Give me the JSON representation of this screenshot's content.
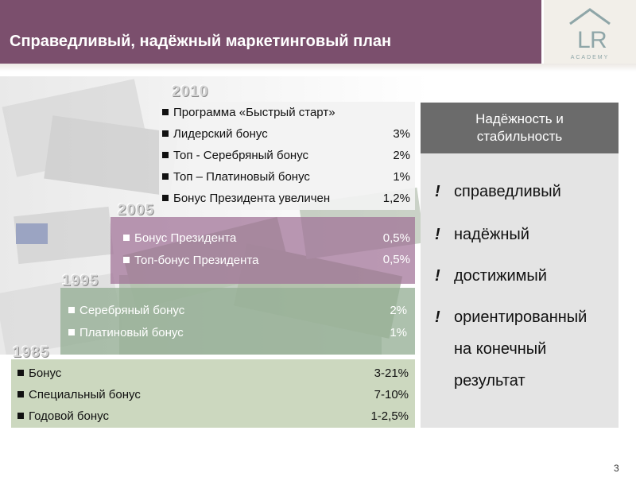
{
  "slide": {
    "title": "Справедливый, надёжный маркетинговый план",
    "page_number": "3",
    "logo_text": "ACADEMY"
  },
  "timeline": {
    "y2010": {
      "year": "2010",
      "items": [
        {
          "label": "Программа «Быстрый старт»",
          "value": ""
        },
        {
          "label": "Лидерский бонус",
          "value": "3%"
        },
        {
          "label": "Топ - Серебряный бонус",
          "value": "2%"
        },
        {
          "label": "Топ – Платиновый бонус",
          "value": "1%"
        },
        {
          "label": "Бонус Президента увеличен",
          "value": "1,2%"
        }
      ]
    },
    "y2005": {
      "year": "2005",
      "items": [
        {
          "label": "Бонус Президента",
          "value": "0,5%"
        },
        {
          "label": "Топ-бонус Президента",
          "value": "0,5%"
        }
      ]
    },
    "y1995": {
      "year": "1995",
      "items": [
        {
          "label": "Серебряный бонус",
          "value": "2%"
        },
        {
          "label": "Платиновый бонус",
          "value": "1%"
        }
      ]
    },
    "y1985": {
      "year": "1985",
      "items": [
        {
          "label": "Бонус",
          "value": "3-21%"
        },
        {
          "label": "Специальный бонус",
          "value": "7-10%"
        },
        {
          "label": "Годовой бонус",
          "value": "1-2,5%"
        }
      ]
    }
  },
  "panel": {
    "heading_line1": "Надёжность и",
    "heading_line2": "стабильность",
    "mark": "!",
    "features": [
      {
        "line1": "справедливый"
      },
      {
        "line1": "надёжный"
      },
      {
        "line1": "достижимый"
      },
      {
        "line1": "ориентированный",
        "line2": "на конечный",
        "line3": "результат"
      }
    ]
  },
  "colors": {
    "header": "#7b4f6d",
    "panel_head": "#6b6b6b",
    "panel_body": "#e4e4e4",
    "band_2005": "#a07096",
    "band_1995": "#96af96",
    "band_1985": "#c6d4b8"
  },
  "icons": {
    "logo": "lr-house-logo",
    "bullet": "square-bullet",
    "background": "banknotes-collage"
  }
}
